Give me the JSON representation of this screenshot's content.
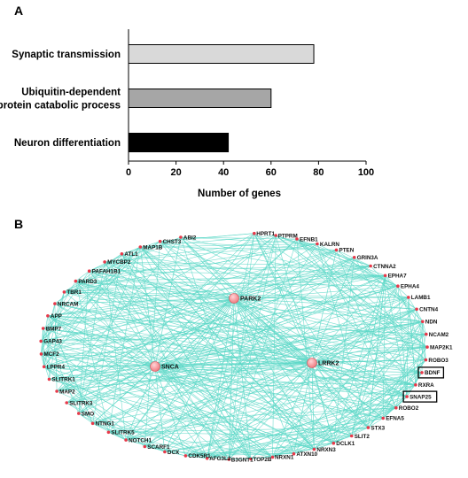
{
  "chart_data": [
    {
      "type": "bar",
      "orientation": "horizontal",
      "panel": "A",
      "categories": [
        "Synaptic transmission",
        "Ubiquitin-dependent protein catabolic process",
        "Neuron differentiation"
      ],
      "category_lines": [
        [
          "Synaptic transmission"
        ],
        [
          "Ubiquitin-dependent",
          "protein catabolic process"
        ],
        [
          "Neuron differentiation"
        ]
      ],
      "values": [
        78,
        60,
        42
      ],
      "colors": [
        "#d9d9d9",
        "#a6a6a6",
        "#000000"
      ],
      "xlabel": "Number of genes",
      "xlim": [
        0,
        100
      ],
      "xticks": [
        0,
        20,
        40,
        60,
        80,
        100
      ],
      "grid": false
    },
    {
      "type": "network",
      "panel": "B",
      "hubs": [
        "PARK2",
        "SNCA",
        "LRRK2"
      ],
      "genes": [
        "HPRT1",
        "PTPRM",
        "EFNB1",
        "KALRN",
        "PTEN",
        "GRIN3A",
        "CTNNA2",
        "EPHA7",
        "EPHA4",
        "LAMB1",
        "CNTN4",
        "NDN",
        "NCAM2",
        "MAP2K1",
        "ROBO3",
        "BDNF",
        "RXRA",
        "SNAP25",
        "ROBO2",
        "EFNA5",
        "STX3",
        "SLIT2",
        "DCLK1",
        "NRXN3",
        "ATXN10",
        "NRXN1",
        "TOP2B",
        "B3GNT1",
        "AFG3L2",
        "CDK5R1",
        "DCX",
        "SCARF1",
        "NOTCH1",
        "SLITRK5",
        "NTNG1",
        "SMO",
        "SLITRK3",
        "MAP2",
        "SLITRK1",
        "LPPR4",
        "MCF2",
        "GAP43",
        "BMP7",
        "APP",
        "NRCAM",
        "TBR1",
        "PARD3",
        "PAFAH1B1",
        "MYCBP2",
        "ATL1",
        "MAP1B",
        "CHST3",
        "ABI2"
      ],
      "boxed_genes": [
        "BDNF",
        "SNAP25"
      ],
      "edge_color": "#5ed8c8",
      "node_color": "#e8394a",
      "hub_color": "#f07a80"
    }
  ]
}
